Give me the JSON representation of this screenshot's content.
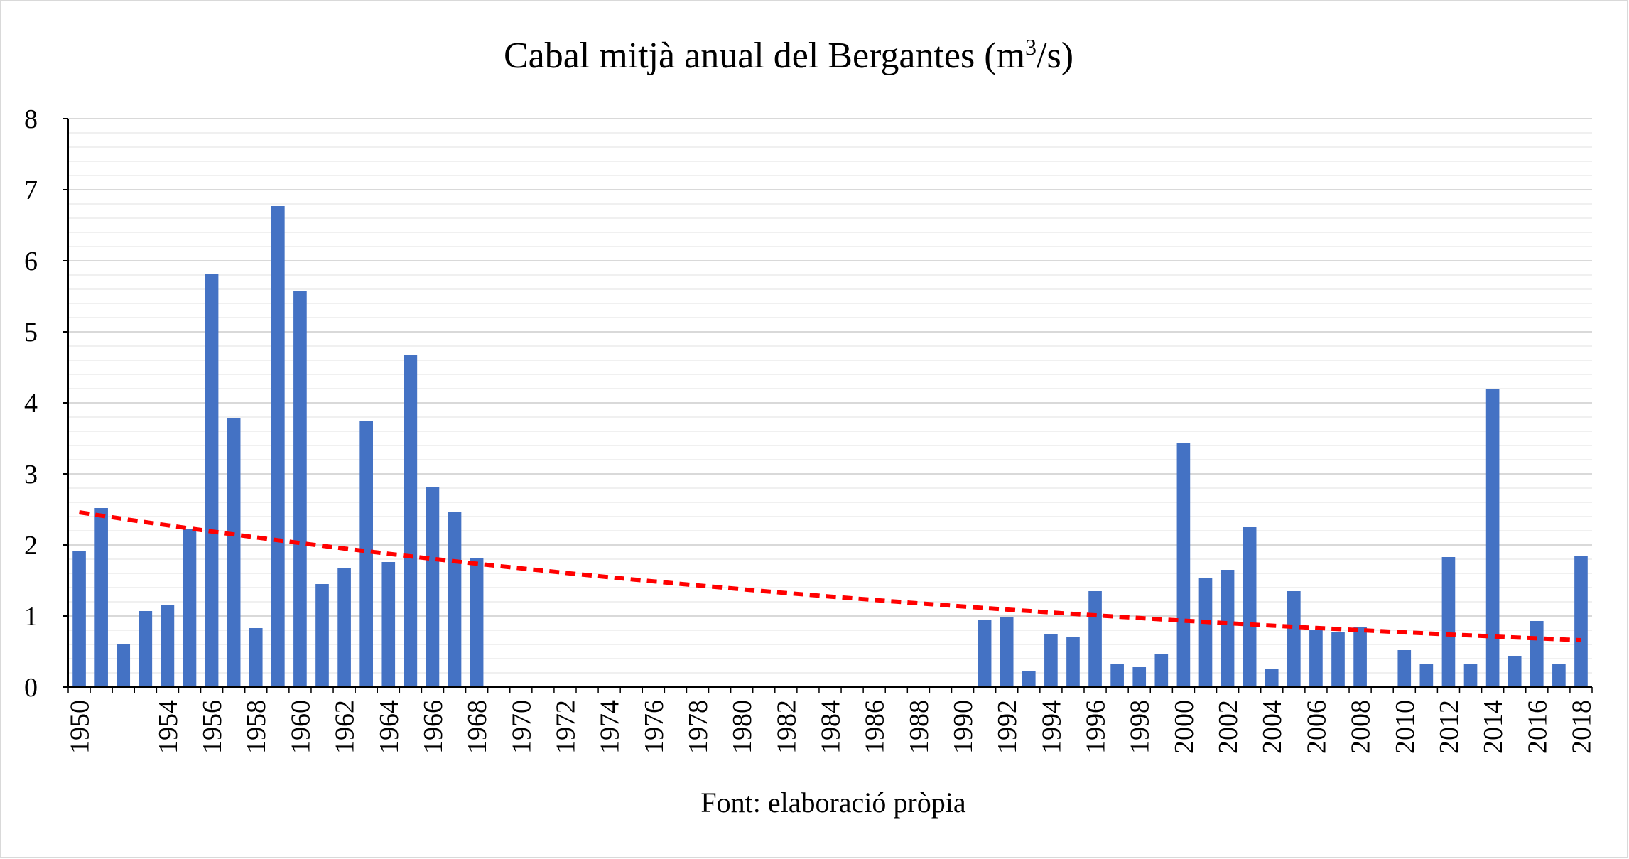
{
  "chart_data": {
    "type": "bar",
    "title": "Cabal mitjà anual del Bergantes (m³/s)",
    "title_main": "Cabal mitjà anual del Bergantes (m",
    "title_sup": "3",
    "title_end": "/s)",
    "source": "Font: elaboració pròpia",
    "xlabel": "",
    "ylabel": "",
    "ylim": [
      0,
      8
    ],
    "yticks": [
      "0",
      "1",
      "2",
      "3",
      "4",
      "5",
      "6",
      "7",
      "8"
    ],
    "grid": true,
    "legend": "none",
    "colors": {
      "bar": "#4472c4",
      "trend": "#ff0000",
      "grid": "#d9d9d9",
      "minor_grid": "#ececec",
      "axis": "#000000"
    },
    "categories": [
      1950,
      1951,
      1952,
      1953,
      1954,
      1955,
      1956,
      1957,
      1958,
      1959,
      1960,
      1961,
      1962,
      1963,
      1964,
      1965,
      1966,
      1967,
      1968,
      1969,
      1970,
      1971,
      1972,
      1973,
      1974,
      1975,
      1976,
      1977,
      1978,
      1979,
      1980,
      1981,
      1982,
      1983,
      1984,
      1985,
      1986,
      1987,
      1988,
      1989,
      1990,
      1991,
      1992,
      1993,
      1994,
      1995,
      1996,
      1997,
      1998,
      1999,
      2000,
      2001,
      2002,
      2003,
      2004,
      2005,
      2006,
      2007,
      2008,
      2009,
      2010,
      2011,
      2012,
      2013,
      2014,
      2015,
      2016,
      2017,
      2018
    ],
    "x_tick_labels": [
      "1950",
      "1954",
      "1956",
      "1958",
      "1960",
      "1962",
      "1964",
      "1966",
      "1968",
      "1970",
      "1972",
      "1974",
      "1976",
      "1978",
      "1980",
      "1982",
      "1984",
      "1986",
      "1988",
      "1990",
      "1992",
      "1994",
      "1996",
      "1998",
      "2000",
      "2002",
      "2004",
      "2006",
      "2008",
      "2010",
      "2012",
      "2014",
      "2016",
      "2018"
    ],
    "values": [
      1.92,
      2.52,
      0.6,
      1.07,
      1.15,
      2.22,
      5.82,
      3.78,
      0.83,
      6.77,
      5.58,
      1.45,
      1.67,
      3.74,
      1.76,
      4.67,
      2.82,
      2.47,
      1.82,
      null,
      null,
      null,
      null,
      null,
      null,
      null,
      null,
      null,
      null,
      null,
      null,
      null,
      null,
      null,
      null,
      null,
      null,
      null,
      null,
      null,
      null,
      0.95,
      0.99,
      0.22,
      0.74,
      0.7,
      1.35,
      0.33,
      0.28,
      0.47,
      3.43,
      1.53,
      1.65,
      2.25,
      0.25,
      1.35,
      0.8,
      0.78,
      0.85,
      null,
      0.52,
      0.32,
      1.83,
      0.32,
      4.19,
      0.44,
      0.93,
      0.32,
      1.85
    ],
    "trendline": {
      "type": "dashed",
      "start": 2.46,
      "end": 0.66
    }
  }
}
